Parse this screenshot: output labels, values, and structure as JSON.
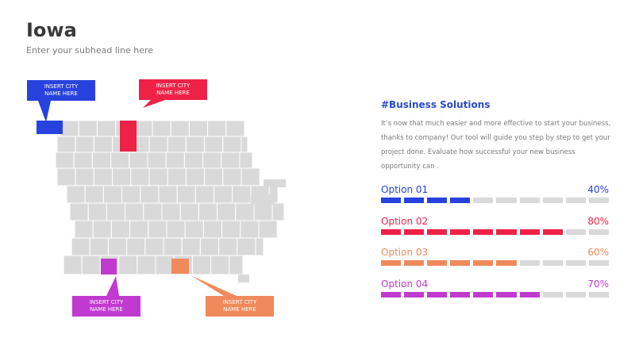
{
  "header": {
    "title": "Iowa",
    "subtitle": "Enter your subhead line here"
  },
  "colors": {
    "blue": "#2742dd",
    "red": "#ee2247",
    "purple": "#c13ad0",
    "orange": "#f0895b",
    "map_gray": "#d9d9d9",
    "bar_gray": "#d9d9d9"
  },
  "callouts": [
    {
      "id": "blue",
      "text": "INSERT CITY\nNAME HERE",
      "color": "#2742dd"
    },
    {
      "id": "red",
      "text": "INSERT CITY\nNAME HERE",
      "color": "#ee2247"
    },
    {
      "id": "purple",
      "text": "INSERT CITY\nNAME HERE",
      "color": "#c13ad0"
    },
    {
      "id": "orange",
      "text": "INSERT CITY\nNAME HERE",
      "color": "#f0895b"
    }
  ],
  "content": {
    "heading": "#Business Solutions",
    "body": "It’s now that much easier and more effective to start your business, thanks to company! Our tool will guide you step by step to get your project done. Evaluate how successful your new business opportunity can ."
  },
  "options": [
    {
      "label": "Option 01",
      "percent_text": "40%",
      "value": 0.4,
      "color": "#2742dd"
    },
    {
      "label": "Option 02",
      "percent_text": "80%",
      "value": 0.8,
      "color": "#ee2247"
    },
    {
      "label": "Option 03",
      "percent_text": "60%",
      "value": 0.6,
      "color": "#f0895b"
    },
    {
      "label": "Option 04",
      "percent_text": "70%",
      "value": 0.7,
      "color": "#c13ad0"
    }
  ]
}
